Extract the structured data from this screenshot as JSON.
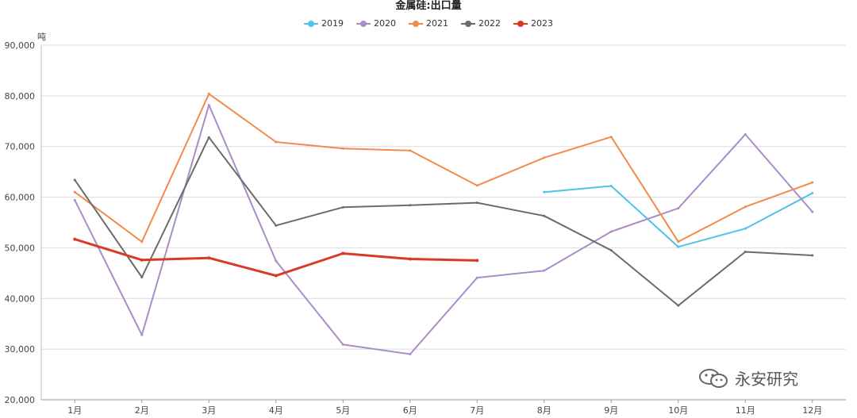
{
  "chart_data": {
    "type": "line",
    "title": "金属硅:出口量",
    "ylabel": "吨",
    "ylim": [
      20000,
      90000
    ],
    "yticks": [
      "20,000",
      "30,000",
      "40,000",
      "50,000",
      "60,000",
      "70,000",
      "80,000",
      "90,000"
    ],
    "ytick_values": [
      20000,
      30000,
      40000,
      50000,
      60000,
      70000,
      80000,
      90000
    ],
    "categories": [
      "1月",
      "2月",
      "3月",
      "4月",
      "5月",
      "6月",
      "7月",
      "8月",
      "9月",
      "10月",
      "11月",
      "12月"
    ],
    "grid": true,
    "legend_position": "top-center",
    "series": [
      {
        "name": "2019",
        "color": "#4dc3e6",
        "values": [
          null,
          null,
          null,
          null,
          null,
          null,
          null,
          61000,
          62200,
          50200,
          53800,
          60800
        ]
      },
      {
        "name": "2020",
        "color": "#aa8cc7",
        "values": [
          59400,
          32800,
          78200,
          47400,
          30900,
          29000,
          44100,
          45500,
          53200,
          57800,
          72400,
          57100
        ]
      },
      {
        "name": "2021",
        "color": "#f28a4c",
        "values": [
          61000,
          51200,
          80400,
          70900,
          69600,
          69200,
          62300,
          67800,
          71900,
          51200,
          58100,
          62900
        ]
      },
      {
        "name": "2022",
        "color": "#6b6b6b",
        "values": [
          63400,
          44200,
          71800,
          54400,
          58000,
          58400,
          58900,
          56300,
          49500,
          38600,
          49200,
          48500
        ]
      },
      {
        "name": "2023",
        "color": "#d73a27",
        "values": [
          51700,
          47600,
          48000,
          44500,
          48900,
          47800,
          47500,
          null,
          null,
          null,
          null,
          null
        ]
      }
    ]
  },
  "watermark": {
    "text": "永安研究",
    "icon": "wechat-icon"
  }
}
